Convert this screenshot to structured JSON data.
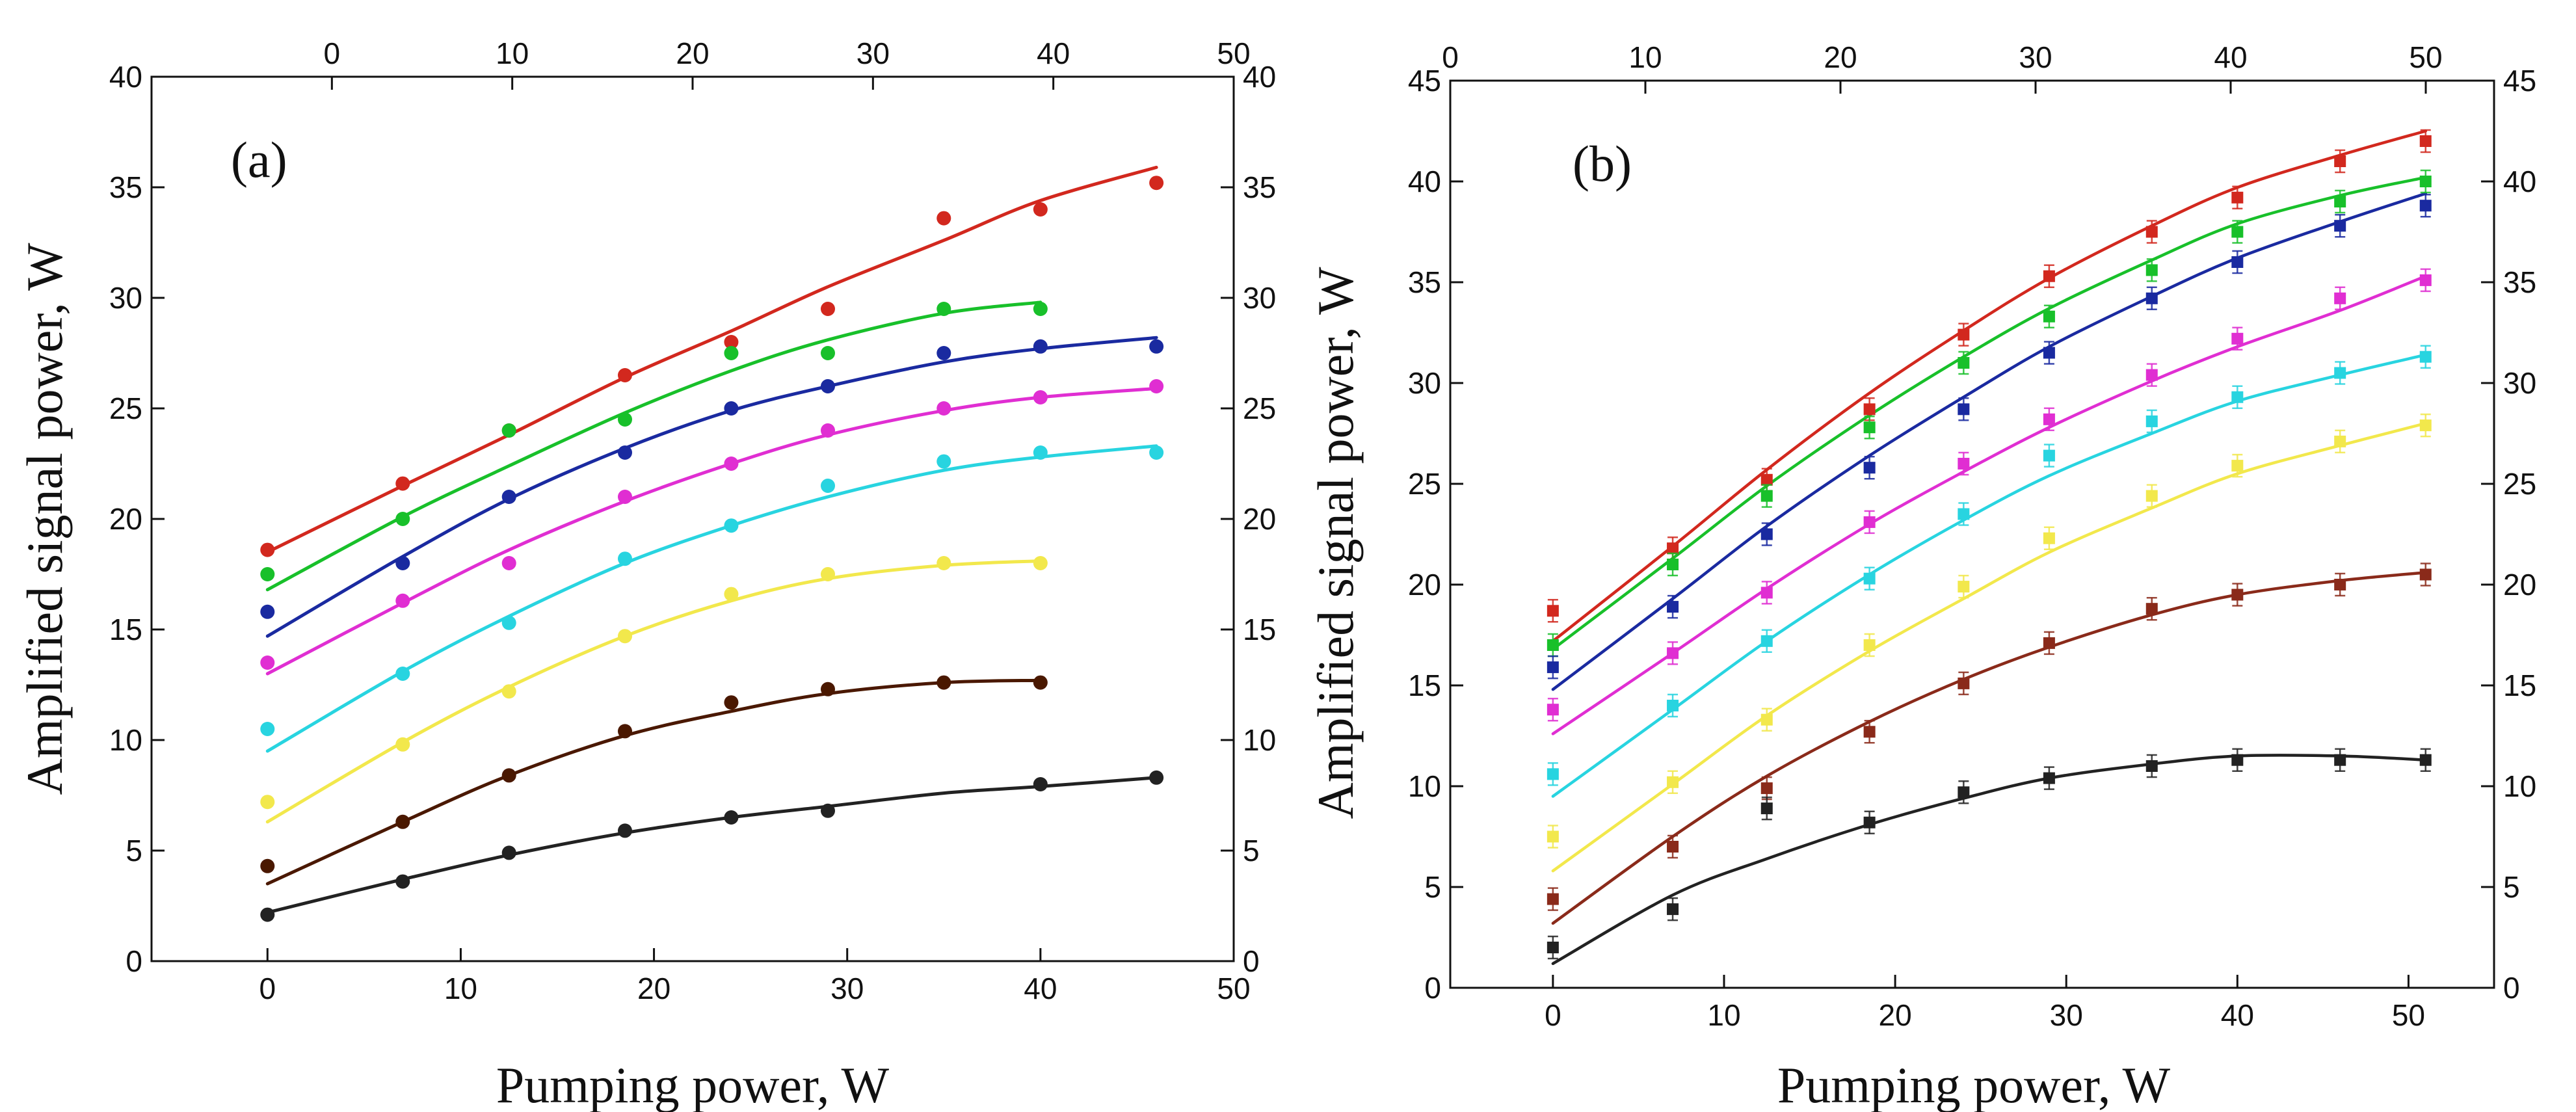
{
  "chart_data": [
    {
      "type": "scatter",
      "panel_label": "(a)",
      "xlabel": "Pumping power, W",
      "ylabel": "Amplified signal power, W",
      "xlim": [
        -6,
        50
      ],
      "ylim": [
        0,
        40
      ],
      "top_xlim": [
        -10,
        50
      ],
      "x_ticks": [
        0,
        10,
        20,
        30,
        40,
        50
      ],
      "y_ticks": [
        0,
        5,
        10,
        15,
        20,
        25,
        30,
        35,
        40
      ],
      "top_x_ticks": [
        0,
        10,
        20,
        30,
        40,
        50
      ],
      "grid": false,
      "error_bars": false,
      "x": [
        0,
        7,
        12.5,
        18.5,
        24,
        29,
        35,
        40,
        46
      ],
      "series": [
        {
          "name": "red",
          "color": "#d2281e",
          "marker_values": [
            18.6,
            21.6,
            24,
            26.5,
            28,
            29.5,
            33.6,
            34,
            35.2
          ],
          "fit_values": [
            18.5,
            21.5,
            23.8,
            26.4,
            28.5,
            30.5,
            32.6,
            34.4,
            35.9
          ]
        },
        {
          "name": "green",
          "color": "#18c02a",
          "marker_values": [
            17.5,
            20,
            24,
            24.5,
            27.5,
            27.5,
            29.5,
            29.5,
            null
          ],
          "fit_values": [
            16.8,
            20.1,
            22.4,
            24.8,
            26.7,
            28.1,
            29.3,
            29.8,
            null
          ]
        },
        {
          "name": "navy",
          "color": "#1a2aa0",
          "marker_values": [
            15.8,
            18,
            21,
            23,
            25,
            26,
            27.5,
            27.8,
            27.8
          ],
          "fit_values": [
            14.7,
            18.3,
            20.9,
            23.2,
            24.9,
            26.0,
            27.1,
            27.7,
            28.2
          ]
        },
        {
          "name": "magenta",
          "color": "#e02ed2",
          "marker_values": [
            13.5,
            16.3,
            18,
            21,
            22.5,
            24,
            25,
            25.5,
            26
          ],
          "fit_values": [
            13.0,
            16.2,
            18.6,
            20.8,
            22.5,
            23.8,
            24.9,
            25.5,
            25.9
          ]
        },
        {
          "name": "cyan",
          "color": "#28d4e0",
          "marker_values": [
            10.5,
            13,
            15.3,
            18.2,
            19.7,
            21.5,
            22.6,
            23,
            23
          ],
          "fit_values": [
            9.5,
            13.1,
            15.6,
            18.0,
            19.7,
            21.0,
            22.2,
            22.8,
            23.3
          ]
        },
        {
          "name": "yellow",
          "color": "#f2e84c",
          "marker_values": [
            7.2,
            9.8,
            12.2,
            14.7,
            16.6,
            17.5,
            18,
            18,
            null
          ],
          "fit_values": [
            6.3,
            9.9,
            12.4,
            14.7,
            16.3,
            17.3,
            17.9,
            18.1,
            null
          ]
        },
        {
          "name": "brown",
          "color": "#4a1800",
          "marker_values": [
            4.3,
            6.3,
            8.4,
            10.4,
            11.7,
            12.3,
            12.6,
            12.6,
            null
          ],
          "fit_values": [
            3.5,
            6.3,
            8.4,
            10.2,
            11.3,
            12.1,
            12.6,
            12.7,
            null
          ]
        },
        {
          "name": "black",
          "color": "#222222",
          "marker_values": [
            2.1,
            3.6,
            4.9,
            5.9,
            6.5,
            6.8,
            null,
            8,
            8.3
          ],
          "fit_values": [
            2.2,
            3.7,
            4.8,
            5.8,
            6.5,
            7.0,
            7.6,
            7.9,
            8.3
          ]
        }
      ]
    },
    {
      "type": "scatter",
      "panel_label": "(b)",
      "xlabel": "Pumping power, W",
      "ylabel": "Amplified signal power, W",
      "xlim": [
        -6,
        55
      ],
      "ylim": [
        0,
        45
      ],
      "top_xlim": [
        0,
        53.5
      ],
      "x_ticks": [
        0,
        10,
        20,
        30,
        40,
        50
      ],
      "y_ticks": [
        0,
        5,
        10,
        15,
        20,
        25,
        30,
        35,
        40,
        45
      ],
      "top_x_ticks": [
        0,
        10,
        20,
        30,
        40,
        50
      ],
      "grid": false,
      "error_bars": true,
      "x": [
        0,
        7,
        12.5,
        18.5,
        24,
        29,
        35,
        40,
        46,
        51
      ],
      "series": [
        {
          "name": "red",
          "color": "#d2281e",
          "marker_values": [
            18.7,
            21.8,
            25.2,
            28.7,
            32.4,
            35.3,
            37.5,
            39.2,
            41,
            42
          ],
          "fit_values": [
            17.2,
            21.9,
            25.7,
            29.5,
            32.6,
            35.2,
            37.8,
            39.7,
            41.3,
            42.5
          ]
        },
        {
          "name": "green",
          "color": "#18c02a",
          "marker_values": [
            17,
            21,
            24.4,
            27.8,
            31,
            33.3,
            35.6,
            37.5,
            39,
            40
          ],
          "fit_values": [
            16.8,
            21.3,
            24.9,
            28.4,
            31.3,
            33.7,
            36.1,
            37.9,
            39.3,
            40.2
          ]
        },
        {
          "name": "navy",
          "color": "#1a2aa0",
          "marker_values": [
            15.9,
            18.9,
            22.5,
            25.8,
            28.7,
            31.5,
            34.2,
            36,
            37.8,
            38.8
          ],
          "fit_values": [
            14.8,
            19.3,
            22.9,
            26.4,
            29.3,
            31.8,
            34.3,
            36.2,
            38.0,
            39.4
          ]
        },
        {
          "name": "magenta",
          "color": "#e02ed2",
          "marker_values": [
            13.8,
            16.6,
            19.6,
            23.1,
            26,
            28.2,
            30.4,
            32.2,
            34.2,
            35.1
          ],
          "fit_values": [
            12.6,
            16.6,
            19.8,
            23.0,
            25.6,
            27.8,
            30.1,
            31.8,
            33.6,
            35.3
          ]
        },
        {
          "name": "cyan",
          "color": "#28d4e0",
          "marker_values": [
            10.6,
            14,
            17.2,
            20.3,
            23.5,
            26.4,
            28.1,
            29.3,
            30.5,
            31.3
          ],
          "fit_values": [
            9.5,
            13.8,
            17.2,
            20.5,
            23.2,
            25.4,
            27.5,
            29.1,
            30.4,
            31.4
          ]
        },
        {
          "name": "yellow",
          "color": "#f2e84c",
          "marker_values": [
            7.5,
            10.2,
            13.3,
            17,
            19.9,
            22.3,
            24.4,
            25.9,
            27.1,
            27.9
          ],
          "fit_values": [
            5.8,
            10.1,
            13.5,
            16.7,
            19.3,
            21.6,
            23.8,
            25.5,
            26.9,
            28.0
          ]
        },
        {
          "name": "brown",
          "color": "#8a2a1a",
          "marker_values": [
            4.4,
            7,
            9.9,
            12.7,
            15.1,
            17.1,
            18.8,
            19.5,
            20,
            20.5
          ],
          "fit_values": [
            3.2,
            7.5,
            10.5,
            13.2,
            15.3,
            16.9,
            18.5,
            19.5,
            20.2,
            20.6
          ]
        },
        {
          "name": "black",
          "color": "#222222",
          "marker_values": [
            2,
            3.9,
            8.9,
            8.2,
            9.7,
            10.4,
            11,
            11.3,
            11.3,
            11.3
          ],
          "fit_values": [
            1.2,
            4.6,
            6.4,
            8.1,
            9.4,
            10.4,
            11.1,
            11.5,
            11.5,
            11.3
          ]
        }
      ]
    }
  ]
}
